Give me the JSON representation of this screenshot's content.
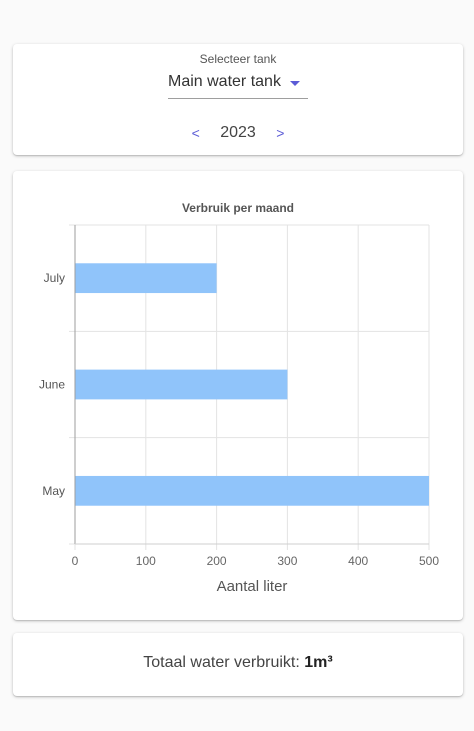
{
  "selector": {
    "label": "Selecteer tank",
    "value": "Main water tank"
  },
  "year_nav": {
    "prev_label": "<",
    "year": "2023",
    "next_label": ">"
  },
  "total": {
    "label": "Totaal water verbruikt:",
    "value": "1m³"
  },
  "colors": {
    "bar": "#90c4fa",
    "accent": "#5b5bd6"
  },
  "chart_data": {
    "type": "bar",
    "orientation": "horizontal",
    "title": "Verbruik per maand",
    "xlabel": "Aantal liter",
    "ylabel": "",
    "categories": [
      "July",
      "June",
      "May"
    ],
    "values": [
      200,
      300,
      500
    ],
    "xlim": [
      0,
      500
    ],
    "xticks": [
      "0",
      "100",
      "200",
      "300",
      "400",
      "500"
    ],
    "grid": true,
    "legend": "none"
  }
}
